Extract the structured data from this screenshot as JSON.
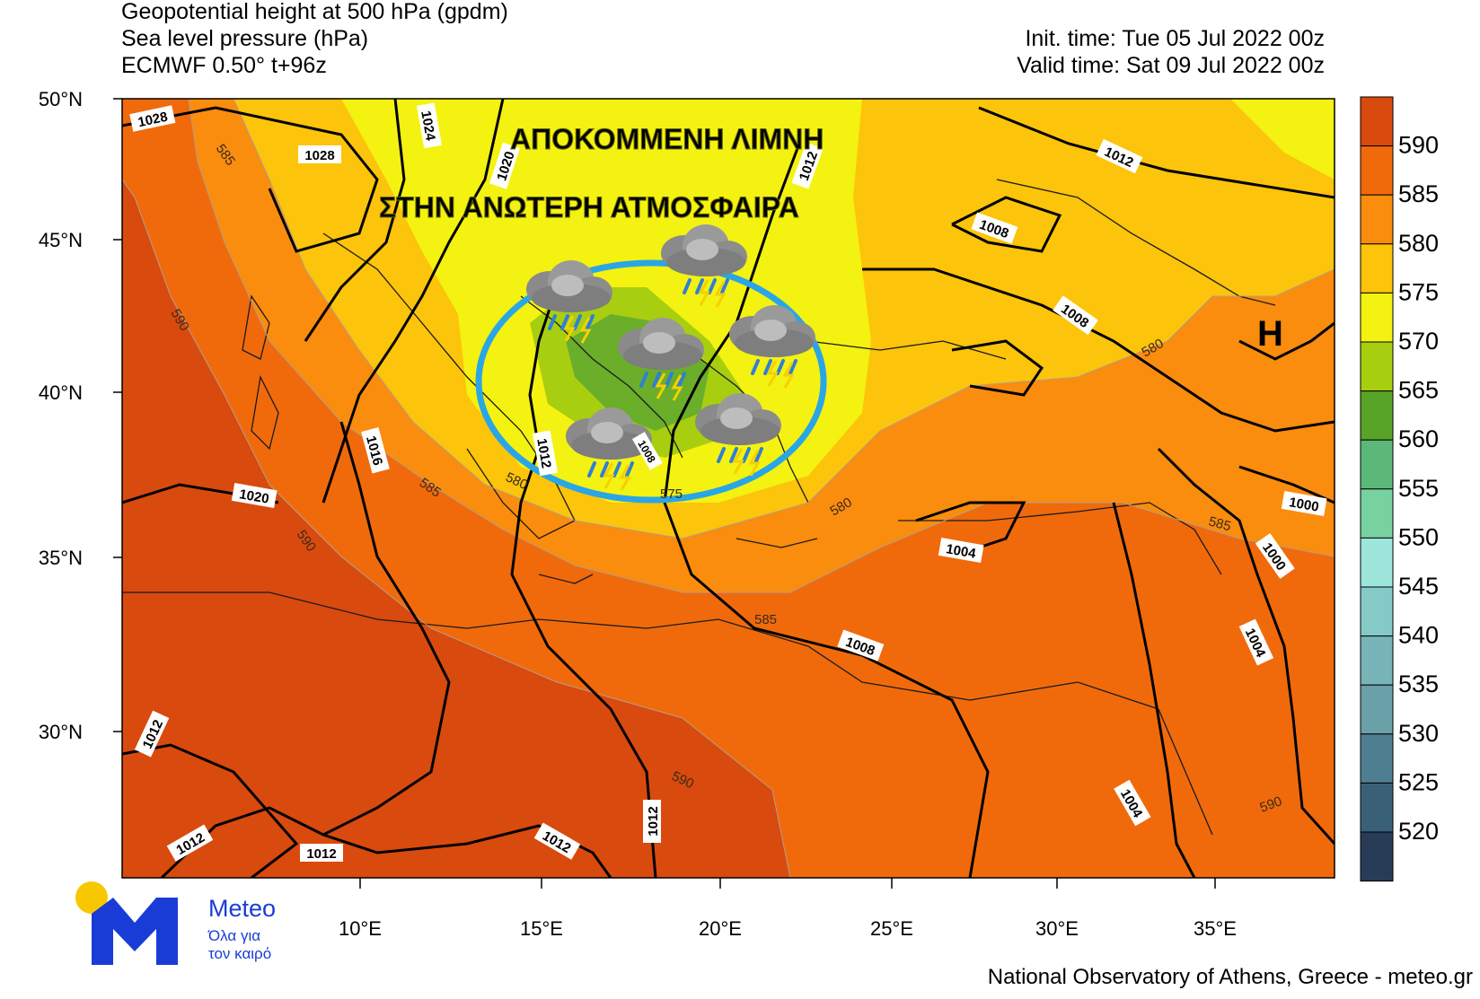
{
  "header": {
    "line1": "Geopotential height at 500 hPa (gpdm)",
    "line2": "Sea level pressure (hPa)",
    "line3": "ECMWF 0.50° t+96z",
    "init_time": "Init. time: Tue 05 Jul 2022 00z",
    "valid_time": "Valid time: Sat 09 Jul 2022 00z"
  },
  "annotation": {
    "line1": "ΑΠΟΚΟΜΜΕΝΗ ΛΙΜΝΗ",
    "line2": "ΣΤΗΝ ΑΝΩΤΕΡΗ ΑΤΜΟΣΦΑΙΡΑ"
  },
  "high_marker": "H",
  "lat_labels": [
    "50°N",
    "45°N",
    "40°N",
    "35°N",
    "30°N"
  ],
  "lon_labels": [
    "10°E",
    "15°E",
    "20°E",
    "25°E",
    "30°E",
    "35°E"
  ],
  "isobar_labels": [
    "1028",
    "1028",
    "1024",
    "1020",
    "1012",
    "1012",
    "1008",
    "1008",
    "1016",
    "1020",
    "1012",
    "1012",
    "1012",
    "1012",
    "1012",
    "1012",
    "1008",
    "1004",
    "1000",
    "1000",
    "1004",
    "1004",
    "1008"
  ],
  "height_labels": [
    "585",
    "590",
    "590",
    "585",
    "580",
    "575",
    "580",
    "580",
    "585",
    "590",
    "585",
    "590"
  ],
  "colorbar": {
    "labels": [
      "590",
      "585",
      "580",
      "575",
      "570",
      "565",
      "560",
      "555",
      "550",
      "545",
      "540",
      "535",
      "530",
      "525",
      "520"
    ],
    "colors": [
      "#d94a0e",
      "#f06a0c",
      "#fa8c0e",
      "#fcc40a",
      "#f4f210",
      "#a8ce10",
      "#58a428",
      "#5cb878",
      "#78d2a0",
      "#9ee6dc",
      "#86cac8",
      "#78b4b8",
      "#6aa0a8",
      "#4e7f90",
      "#3a6078",
      "#283c58"
    ]
  },
  "fill_colors": {
    "deep": "#d94a0e",
    "orange": "#f06a0c",
    "light_orange": "#fa8c0e",
    "amber": "#fcc40a",
    "yellow": "#f4f210",
    "lime": "#a8ce10",
    "green": "#6aae2a",
    "circle": "#2aa6e6"
  },
  "icons": [
    "thunderstorm-rain-icon"
  ],
  "branding": {
    "logo_word": "Meteo",
    "logo_sub1": "Όλα για",
    "logo_sub2": "τον καιρό",
    "footer": "National Observatory of Athens, Greece - meteo.gr"
  }
}
